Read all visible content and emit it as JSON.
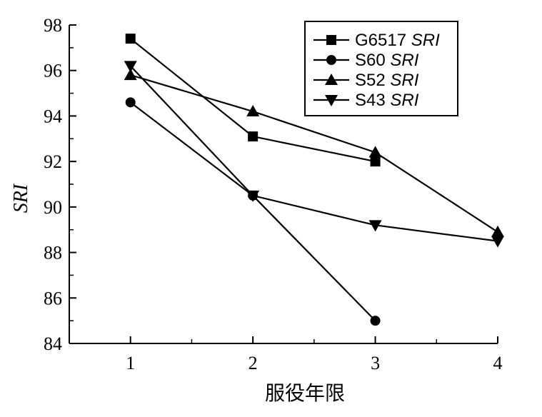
{
  "chart_data": {
    "type": "line",
    "xlabel": "服役年限",
    "ylabel": "SRI",
    "x": [
      1,
      2,
      3,
      4
    ],
    "xticks": [
      "1",
      "2",
      "3",
      "4"
    ],
    "yticks": [
      "84",
      "86",
      "88",
      "90",
      "92",
      "94",
      "96",
      "98"
    ],
    "xlim": [
      0.5,
      4
    ],
    "ylim": [
      84,
      98
    ],
    "grid": false,
    "legend_position": "top-right",
    "series": [
      {
        "name": "G6517 SRI",
        "name_plain": "G6517 ",
        "name_italic": "SRI",
        "marker": "square",
        "color": "#000000",
        "x": [
          1,
          2,
          3
        ],
        "values": [
          97.4,
          93.1,
          92.0
        ]
      },
      {
        "name": "S60 SRI",
        "name_plain": "S60 ",
        "name_italic": "SRI",
        "marker": "circle",
        "color": "#000000",
        "x": [
          1,
          2,
          3
        ],
        "values": [
          94.6,
          90.5,
          85.0
        ]
      },
      {
        "name": "S52 SRI",
        "name_plain": "S52 ",
        "name_italic": "SRI",
        "marker": "triangle-up",
        "color": "#000000",
        "x": [
          1,
          2,
          3,
          4
        ],
        "values": [
          95.8,
          94.2,
          92.4,
          88.9
        ]
      },
      {
        "name": "S43 SRI",
        "name_plain": "S43 ",
        "name_italic": "SRI",
        "marker": "triangle-down",
        "color": "#000000",
        "x": [
          1,
          2,
          3,
          4
        ],
        "values": [
          96.2,
          90.5,
          89.2,
          88.5
        ]
      }
    ]
  }
}
